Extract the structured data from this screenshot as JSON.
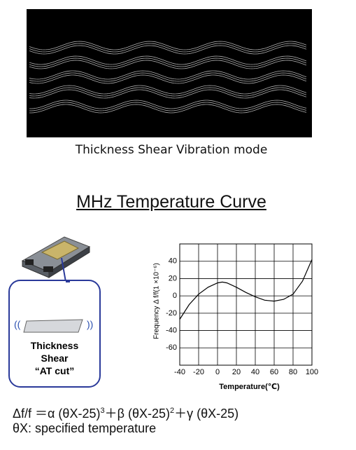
{
  "caption": "Thickness Shear Vibration mode",
  "title": "MHz Temperature Curve",
  "cut_label": [
    "Thickness",
    "Shear",
    "“AT cut”"
  ],
  "chart_data": {
    "type": "line",
    "x": [
      -40,
      -30,
      -20,
      -10,
      0,
      5,
      10,
      20,
      30,
      40,
      50,
      60,
      70,
      80,
      90,
      100
    ],
    "series": [
      {
        "color": "#000000",
        "values": [
          -27,
          -10,
          2,
          10,
          15,
          16,
          15,
          10,
          4,
          -1,
          -5,
          -6,
          -4,
          2,
          17,
          42
        ]
      }
    ],
    "xlabel": "Temperature(℃)",
    "ylabel": "Frequency Δ f/f(1 ×10⁻⁶)",
    "xlim": [
      -40,
      100
    ],
    "ylim": [
      -80,
      60
    ],
    "xticks": [
      -40,
      -20,
      0,
      20,
      40,
      60,
      80,
      100
    ],
    "yticks": [
      -60,
      -40,
      -20,
      0,
      20,
      40
    ],
    "grid": true
  },
  "formula": [
    "Δf/f ＝α (θX-25)",
    "3",
    "＋β (θX-25)",
    "2",
    "＋γ (θX-25)"
  ],
  "note": "θX: specified temperature"
}
